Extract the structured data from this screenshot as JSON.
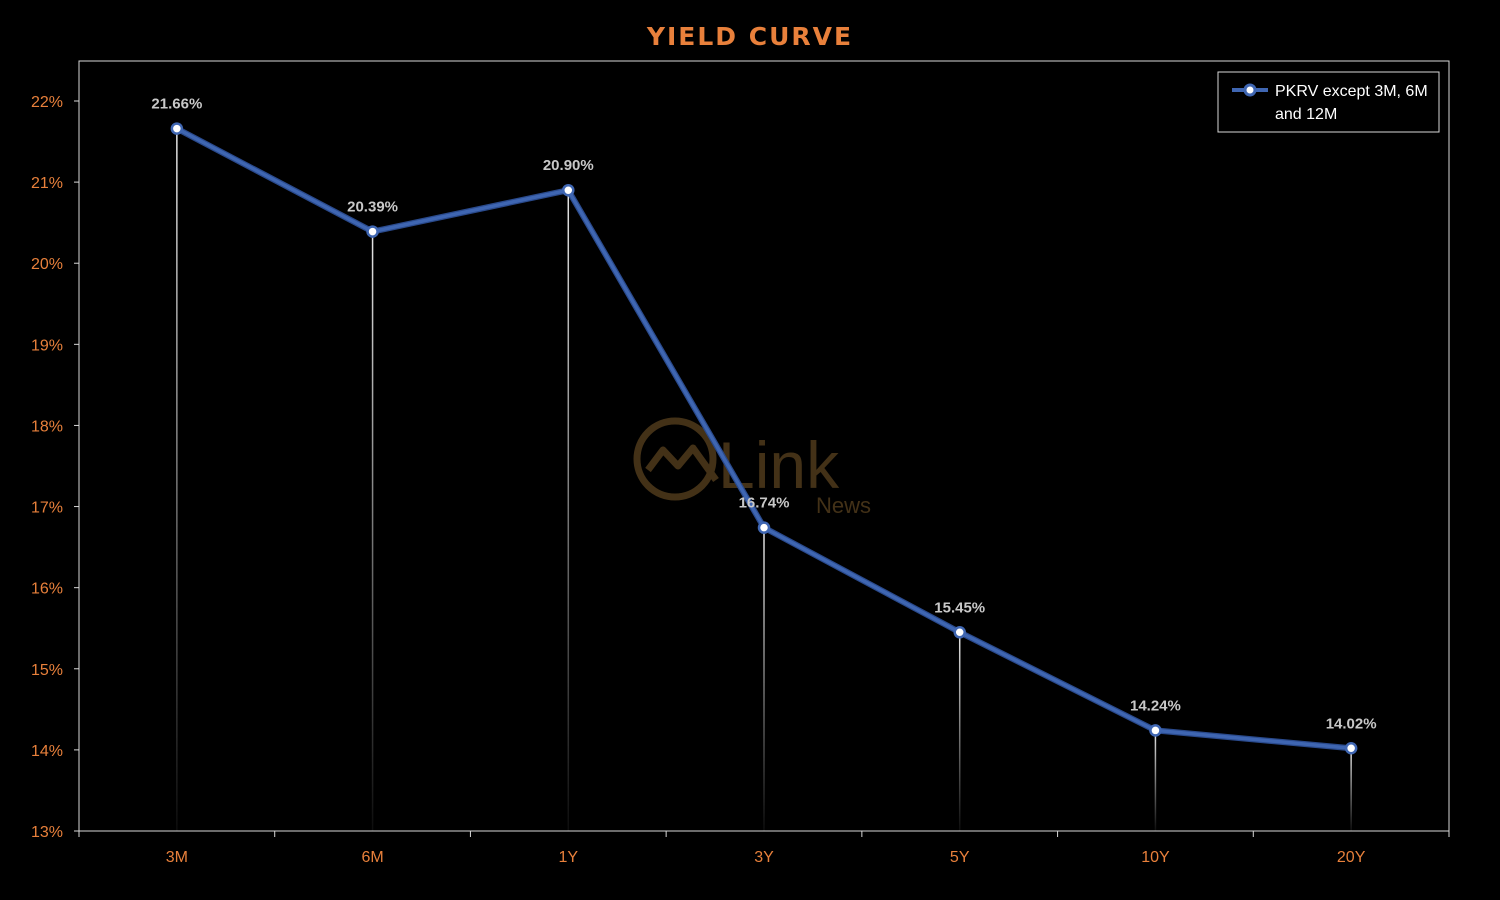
{
  "chart_data": {
    "type": "line",
    "title": "YIELD CURVE",
    "categories": [
      "3M",
      "6M",
      "1Y",
      "3Y",
      "5Y",
      "10Y",
      "20Y"
    ],
    "series": [
      {
        "name": "PKRV except 3M, 6M and 12M",
        "name_lines": [
          "PKRV except 3M, 6M",
          "and 12M"
        ],
        "values": [
          21.66,
          20.39,
          20.9,
          16.74,
          15.45,
          14.24,
          14.02
        ],
        "data_labels": [
          "21.66%",
          "20.39%",
          "20.90%",
          "16.74%",
          "15.45%",
          "14.24%",
          "14.02%"
        ],
        "color": "#3f66b2"
      }
    ],
    "ylim": [
      13,
      22
    ],
    "y_ticks": [
      13,
      14,
      15,
      16,
      17,
      18,
      19,
      20,
      21,
      22
    ],
    "y_tick_labels": [
      "13%",
      "14%",
      "15%",
      "16%",
      "17%",
      "18%",
      "19%",
      "20%",
      "21%",
      "22%"
    ],
    "xlabel": "",
    "ylabel": "",
    "grid": false,
    "drop_lines": true,
    "legend_position": "top-right"
  },
  "watermark": {
    "text": "Link",
    "subtext": "News"
  },
  "colors": {
    "background": "#000000",
    "title": "#e8803b",
    "tick_label": "#e8803b",
    "axis": "#d9d9d9",
    "data_label": "#c8c8c8",
    "line": "#3f66b2",
    "marker_fill": "#ffffff",
    "legend_text": "#ffffff",
    "watermark": "#7a5a2a"
  }
}
